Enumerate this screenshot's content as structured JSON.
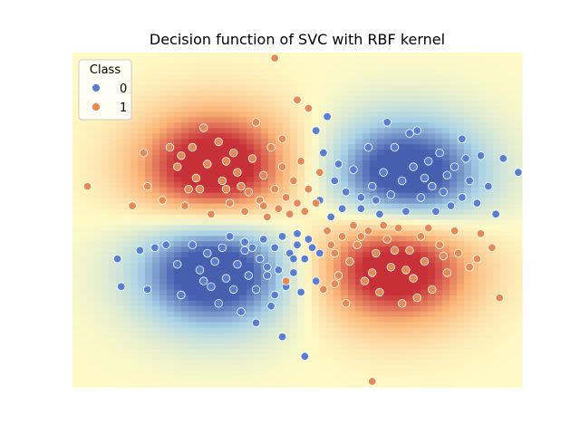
{
  "chart_data": {
    "type": "scatter",
    "title": "Decision function of SVC with RBF kernel",
    "xlabel": "",
    "ylabel": "",
    "xlim": [
      -3,
      3
    ],
    "ylim": [
      -3,
      3
    ],
    "grid": false,
    "axes_visible": false,
    "background": "RBF decision function heatmap (blue positive-class-0 regions top-right / bottom-left, red class-1 regions top-left / bottom-right)",
    "legend": {
      "title": "Class",
      "placement": "top-left",
      "entries": [
        {
          "label": "0",
          "color": "#4c72b0"
        },
        {
          "label": "1",
          "color": "#dd8452"
        }
      ]
    },
    "colors": {
      "class0": "#5a7fd0",
      "class1": "#e48a55",
      "heat_pos": "#b30c26",
      "heat_neg": "#3d4fa0"
    },
    "series": [
      {
        "name": "0",
        "points": [
          [
            -2.35,
            -1.2
          ],
          [
            -2.1,
            -0.55
          ],
          [
            -2.0,
            -1.25
          ],
          [
            -1.9,
            -0.5
          ],
          [
            -1.75,
            -0.45
          ],
          [
            -1.55,
            -1.35
          ],
          [
            -1.4,
            -0.45
          ],
          [
            -1.3,
            -0.9
          ],
          [
            -1.2,
            -0.6
          ],
          [
            -1.1,
            -0.75
          ],
          [
            -1.05,
            -1.5
          ],
          [
            -1.0,
            -0.5
          ],
          [
            -0.95,
            -1.05
          ],
          [
            -0.85,
            -1.25
          ],
          [
            -0.8,
            -0.8
          ],
          [
            -0.75,
            -1.65
          ],
          [
            -0.7,
            -0.4
          ],
          [
            -0.65,
            -1.0
          ],
          [
            -0.6,
            -0.5
          ],
          [
            -0.55,
            -1.25
          ],
          [
            -0.5,
            -0.7
          ],
          [
            -0.45,
            -0.35
          ],
          [
            -0.4,
            -1.0
          ],
          [
            -0.35,
            -1.55
          ],
          [
            -0.3,
            -0.5
          ],
          [
            -0.25,
            -0.9
          ],
          [
            -0.2,
            -0.3
          ],
          [
            -0.15,
            -1.2
          ],
          [
            -0.1,
            -0.6
          ],
          [
            -0.05,
            -0.95
          ],
          [
            0.0,
            -0.45
          ],
          [
            0.05,
            -1.3
          ],
          [
            0.1,
            -0.7
          ],
          [
            0.15,
            -0.35
          ],
          [
            0.2,
            -0.5
          ],
          [
            0.25,
            -1.1
          ],
          [
            0.3,
            -0.6
          ],
          [
            -0.9,
            -0.3
          ],
          [
            -1.15,
            -1.2
          ],
          [
            -0.55,
            -1.85
          ],
          [
            -0.2,
            -2.1
          ],
          [
            0.1,
            -2.45
          ],
          [
            -1.6,
            -0.8
          ],
          [
            -1.25,
            -1.1
          ],
          [
            -0.4,
            -0.85
          ],
          [
            0.0,
            -0.25
          ],
          [
            -0.7,
            -0.55
          ],
          [
            -0.3,
            -1.35
          ],
          [
            -0.05,
            -0.7
          ],
          [
            -2.4,
            -0.7
          ],
          [
            0.6,
            0.2
          ],
          [
            0.5,
            0.7
          ],
          [
            0.35,
            1.2
          ],
          [
            0.25,
            1.6
          ],
          [
            0.55,
            1.0
          ],
          [
            0.65,
            0.5
          ],
          [
            0.75,
            0.9
          ],
          [
            0.85,
            0.4
          ],
          [
            0.95,
            1.3
          ],
          [
            1.0,
            0.6
          ],
          [
            1.1,
            0.1
          ],
          [
            1.15,
            0.85
          ],
          [
            1.25,
            0.45
          ],
          [
            1.3,
            1.3
          ],
          [
            1.4,
            0.7
          ],
          [
            1.45,
            0.15
          ],
          [
            1.5,
            1.55
          ],
          [
            1.55,
            0.95
          ],
          [
            1.65,
            0.4
          ],
          [
            1.75,
            1.05
          ],
          [
            1.8,
            0.6
          ],
          [
            1.85,
            0.15
          ],
          [
            1.9,
            1.2
          ],
          [
            1.95,
            0.5
          ],
          [
            2.0,
            0.8
          ],
          [
            2.05,
            0.25
          ],
          [
            2.1,
            0.95
          ],
          [
            2.2,
            0.4
          ],
          [
            2.25,
            1.1
          ],
          [
            2.3,
            0.7
          ],
          [
            2.4,
            0.3
          ],
          [
            2.45,
            1.15
          ],
          [
            2.55,
            0.6
          ],
          [
            2.65,
            0.1
          ],
          [
            2.75,
            1.1
          ],
          [
            2.95,
            0.85
          ],
          [
            1.2,
            1.75
          ],
          [
            1.6,
            1.6
          ],
          [
            0.4,
            1.85
          ],
          [
            2.2,
            1.45
          ],
          [
            0.85,
            0.2
          ],
          [
            0.3,
            0.35
          ],
          [
            0.45,
            0.05
          ],
          [
            1.05,
            0.35
          ],
          [
            1.7,
            0.75
          ]
        ]
      },
      {
        "name": "1",
        "points": [
          [
            -2.0,
            0.6
          ],
          [
            -1.8,
            0.35
          ],
          [
            -1.6,
            0.95
          ],
          [
            -1.5,
            0.25
          ],
          [
            -1.4,
            1.3
          ],
          [
            -1.3,
            0.55
          ],
          [
            -1.2,
            1.0
          ],
          [
            -1.15,
            0.1
          ],
          [
            -1.05,
            1.4
          ],
          [
            -1.0,
            0.7
          ],
          [
            -0.9,
            0.3
          ],
          [
            -0.85,
            1.2
          ],
          [
            -0.8,
            0.85
          ],
          [
            -0.7,
            0.15
          ],
          [
            -0.65,
            0.5
          ],
          [
            -0.6,
            1.1
          ],
          [
            -0.5,
            0.35
          ],
          [
            -0.45,
            0.8
          ],
          [
            -0.4,
            0.05
          ],
          [
            -0.35,
            1.3
          ],
          [
            -0.3,
            0.55
          ],
          [
            -0.25,
            0.2
          ],
          [
            -0.2,
            0.95
          ],
          [
            -0.15,
            0.4
          ],
          [
            -0.1,
            0.1
          ],
          [
            -0.05,
            0.7
          ],
          [
            0.0,
            0.3
          ],
          [
            0.05,
            1.05
          ],
          [
            0.1,
            0.15
          ],
          [
            0.15,
            0.55
          ],
          [
            0.25,
            0.3
          ],
          [
            0.3,
            0.85
          ],
          [
            -1.7,
            1.3
          ],
          [
            -1.25,
            1.65
          ],
          [
            -0.95,
            1.05
          ],
          [
            -1.55,
            1.15
          ],
          [
            -2.05,
            1.2
          ],
          [
            -0.55,
            1.75
          ],
          [
            -0.2,
            1.45
          ],
          [
            -1.35,
            0.75
          ],
          [
            -0.75,
            0.6
          ],
          [
            -0.45,
            0.25
          ],
          [
            -0.95,
            0.55
          ],
          [
            -1.45,
            0.55
          ],
          [
            0.4,
            -0.2
          ],
          [
            0.5,
            -0.6
          ],
          [
            0.55,
            -1.0
          ],
          [
            0.6,
            -0.3
          ],
          [
            0.7,
            -0.75
          ],
          [
            0.8,
            -0.45
          ],
          [
            0.9,
            -1.1
          ],
          [
            0.95,
            -0.2
          ],
          [
            1.05,
            -0.6
          ],
          [
            1.1,
            -1.3
          ],
          [
            1.2,
            -0.35
          ],
          [
            1.25,
            -0.85
          ],
          [
            1.35,
            -0.15
          ],
          [
            1.4,
            -1.5
          ],
          [
            1.5,
            -0.55
          ],
          [
            1.55,
            -1.05
          ],
          [
            1.65,
            -0.3
          ],
          [
            1.7,
            -0.75
          ],
          [
            1.8,
            -1.25
          ],
          [
            1.9,
            -0.45
          ],
          [
            2.0,
            -0.95
          ],
          [
            2.1,
            -0.2
          ],
          [
            2.15,
            -0.6
          ],
          [
            2.3,
            -0.85
          ],
          [
            2.45,
            -0.25
          ],
          [
            2.6,
            -0.5
          ],
          [
            2.7,
            -1.4
          ],
          [
            0.65,
            -1.5
          ],
          [
            0.5,
            -1.15
          ],
          [
            0.75,
            -0.1
          ],
          [
            1.0,
            -0.95
          ],
          [
            1.3,
            -0.55
          ],
          [
            1.6,
            -1.4
          ],
          [
            1.95,
            -0.65
          ],
          [
            0.45,
            -0.45
          ],
          [
            0.85,
            -0.3
          ],
          [
            1.15,
            -0.1
          ],
          [
            1.45,
            -0.9
          ],
          [
            1.75,
            -0.15
          ],
          [
            0.35,
            -1.25
          ],
          [
            2.4,
            -0.7
          ],
          [
            -0.3,
            2.9
          ],
          [
            0.15,
            2.0
          ],
          [
            -0.15,
            -1.1
          ],
          [
            1.0,
            -2.9
          ],
          [
            -2.8,
            0.6
          ],
          [
            -2.2,
            0.25
          ],
          [
            0.0,
            2.15
          ]
        ]
      }
    ]
  }
}
